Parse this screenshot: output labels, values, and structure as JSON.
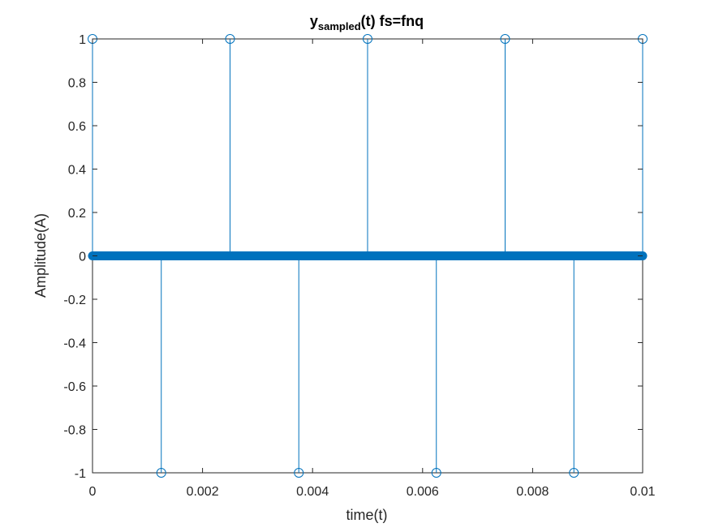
{
  "chart_data": {
    "type": "stem",
    "title": {
      "main": "y",
      "subscript": "sampled",
      "suffix": "(t) fs=fnq"
    },
    "xlabel": "time(t)",
    "ylabel": "Amplitude(A)",
    "xlim": [
      0,
      0.01
    ],
    "ylim": [
      -1,
      1
    ],
    "xticks": [
      0,
      0.002,
      0.004,
      0.006,
      0.008,
      0.01
    ],
    "xtick_labels": [
      "0",
      "0.002",
      "0.004",
      "0.006",
      "0.008",
      "0.01"
    ],
    "yticks": [
      -1,
      -0.8,
      -0.6,
      -0.4,
      -0.2,
      0,
      0.2,
      0.4,
      0.6,
      0.8,
      1
    ],
    "ytick_labels": [
      "-1",
      "-0.8",
      "-0.6",
      "-0.4",
      "-0.2",
      "0",
      "0.2",
      "0.4",
      "0.6",
      "0.8",
      "1"
    ],
    "grid": false,
    "box": true,
    "color": "#0072BD",
    "series": [
      {
        "x": [
          0,
          0.00125,
          0.0025,
          0.00375,
          0.005,
          0.00625,
          0.0075,
          0.00875,
          0.01
        ],
        "y": [
          1,
          -1,
          1,
          -1,
          1,
          -1,
          1,
          -1,
          1
        ]
      }
    ],
    "zero_samples": {
      "x_start": 0,
      "x_end": 0.01,
      "y": 0
    }
  }
}
